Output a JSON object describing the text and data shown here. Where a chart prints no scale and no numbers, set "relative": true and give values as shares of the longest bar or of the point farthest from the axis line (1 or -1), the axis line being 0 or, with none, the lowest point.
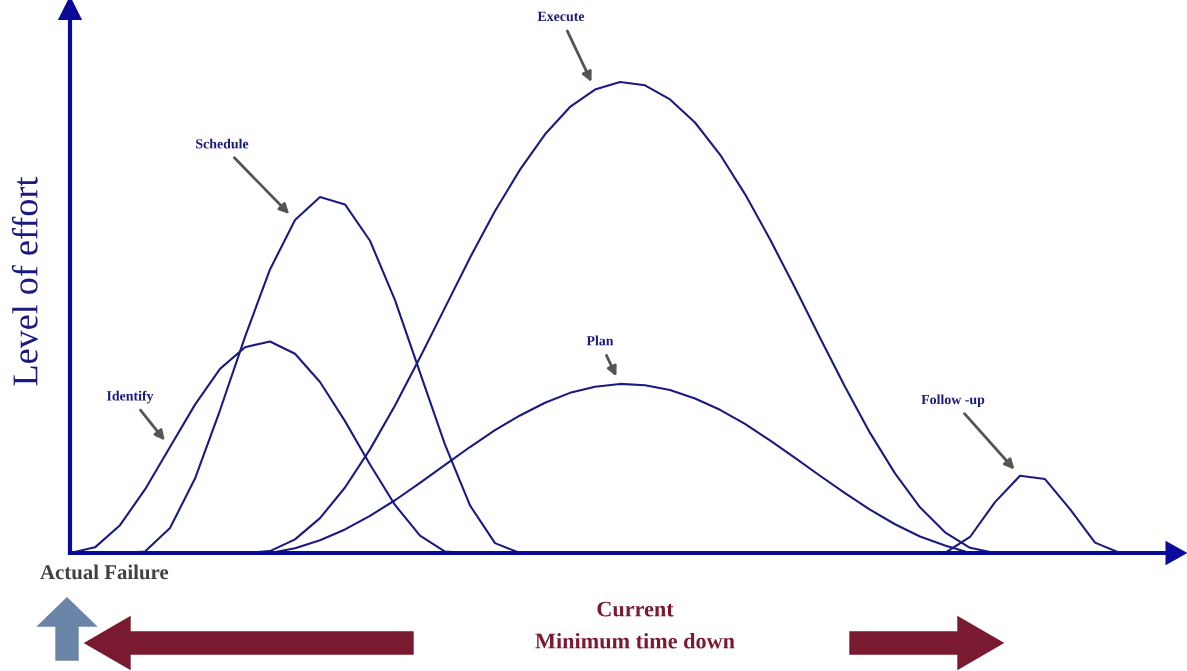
{
  "chart_data": {
    "type": "line",
    "relative": true,
    "ylabel": "Level of effort",
    "legend": false,
    "marker": "none",
    "line_style": "solid",
    "categories": [
      null,
      null,
      null,
      null,
      null,
      null,
      null,
      null,
      null,
      null,
      null,
      null,
      null,
      null,
      null,
      null,
      null,
      null,
      null,
      null,
      null,
      null,
      null,
      null,
      null,
      null,
      null,
      null,
      null,
      null,
      null,
      null,
      null,
      null,
      null,
      null,
      null,
      null,
      null,
      null,
      null,
      null,
      null,
      null,
      null
    ],
    "series": [
      {
        "name": "Identify",
        "color": "#1a1a80",
        "values": [
          0,
          0.012,
          0.059,
          0.135,
          0.225,
          0.315,
          0.391,
          0.437,
          0.449,
          0.423,
          0.363,
          0.28,
          0.188,
          0.102,
          0.037,
          0.003,
          0,
          null,
          null,
          null,
          null,
          null,
          null,
          null,
          null,
          null,
          null,
          null,
          null,
          null,
          null,
          null,
          null,
          null,
          null,
          null,
          null,
          null,
          null,
          null,
          null,
          null,
          null,
          null,
          null
        ]
      },
      {
        "name": "Schedule",
        "color": "#1a1a80",
        "values": [
          null,
          null,
          0,
          0.003,
          0.053,
          0.158,
          0.303,
          0.459,
          0.602,
          0.707,
          0.756,
          0.74,
          0.663,
          0.537,
          0.383,
          0.23,
          0.101,
          0.021,
          0,
          null,
          null,
          null,
          null,
          null,
          null,
          null,
          null,
          null,
          null,
          null,
          null,
          null,
          null,
          null,
          null,
          null,
          null,
          null,
          null,
          null,
          null,
          null,
          null,
          null,
          null
        ]
      },
      {
        "name": "Execute",
        "color": "#1a1a80",
        "values": [
          null,
          null,
          null,
          null,
          null,
          null,
          null,
          0,
          0.004,
          0.029,
          0.074,
          0.139,
          0.22,
          0.313,
          0.415,
          0.521,
          0.627,
          0.726,
          0.814,
          0.889,
          0.947,
          0.984,
          1.0,
          0.993,
          0.963,
          0.914,
          0.846,
          0.762,
          0.666,
          0.563,
          0.457,
          0.353,
          0.255,
          0.169,
          0.097,
          0.044,
          0.011,
          0,
          null,
          null,
          null,
          null,
          null,
          null,
          null
        ]
      },
      {
        "name": "Plan",
        "color": "#1a1a80",
        "values": [
          null,
          null,
          null,
          null,
          null,
          null,
          null,
          null,
          0,
          0.01,
          0.027,
          0.05,
          0.079,
          0.112,
          0.149,
          0.187,
          0.225,
          0.261,
          0.292,
          0.319,
          0.34,
          0.353,
          0.359,
          0.356,
          0.346,
          0.328,
          0.304,
          0.274,
          0.239,
          0.202,
          0.164,
          0.127,
          0.092,
          0.061,
          0.035,
          0.016,
          0,
          null,
          null,
          null,
          null,
          null,
          null,
          null,
          null
        ]
      },
      {
        "name": "Follow -up",
        "color": "#1a1a80",
        "values": [
          null,
          null,
          null,
          null,
          null,
          null,
          null,
          null,
          null,
          null,
          null,
          null,
          null,
          null,
          null,
          null,
          null,
          null,
          null,
          null,
          null,
          null,
          null,
          null,
          null,
          null,
          null,
          null,
          null,
          null,
          null,
          null,
          null,
          null,
          null,
          0,
          0.034,
          0.108,
          0.164,
          0.157,
          0.093,
          0.022,
          0,
          null,
          null
        ]
      }
    ],
    "annotations": [
      "Actual Failure",
      "Current",
      "Minimum time down"
    ]
  }
}
